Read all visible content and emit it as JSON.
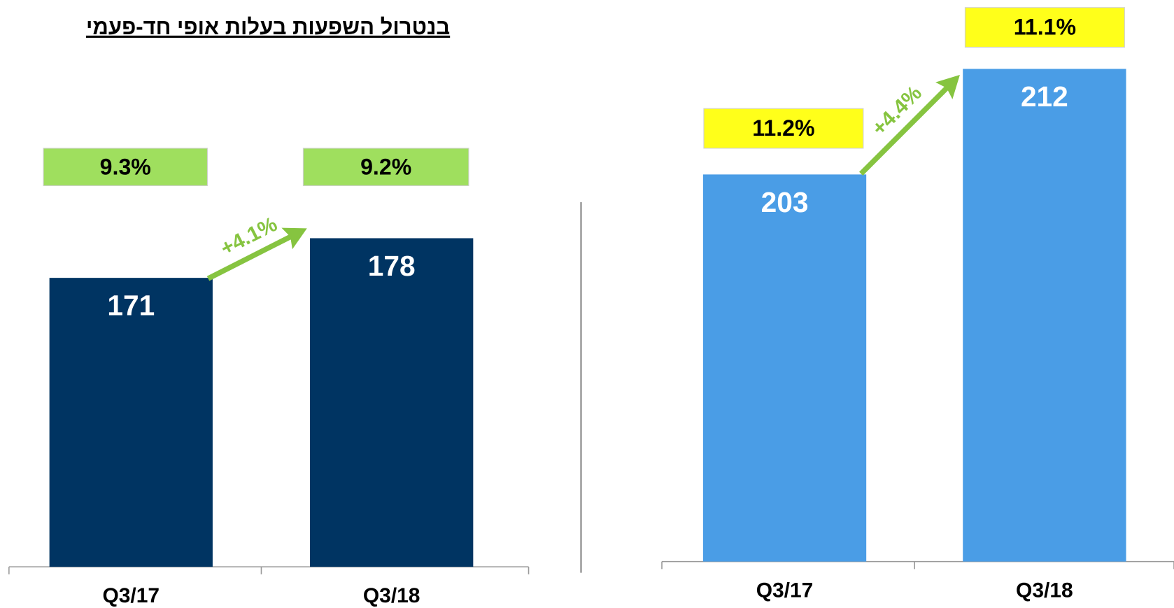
{
  "chart_data": [
    {
      "type": "bar",
      "title": "בנטרול השפעות בעלות אופי חד-פעמי",
      "categories": [
        "Q3/17",
        "Q3/18"
      ],
      "values": [
        171,
        178
      ],
      "color": "#003462",
      "ylim": [
        120,
        180
      ],
      "margin": {
        "values": [
          9.3,
          9.2
        ],
        "value_labels": [
          "9.3%",
          "9.2%"
        ],
        "color": "#9fdf5e"
      },
      "change": {
        "label": "+4.1%",
        "color": "#86c440"
      }
    },
    {
      "type": "bar",
      "categories": [
        "Q3/17",
        "Q3/18"
      ],
      "values": [
        203,
        212
      ],
      "color": "#4a9de6",
      "ylim": [
        170,
        215
      ],
      "margin": {
        "values": [
          11.2,
          11.1
        ],
        "value_labels": [
          "11.2%",
          "11.1%"
        ],
        "color": "#ffff1a"
      },
      "change": {
        "label": "+4.4%",
        "color": "#86c440"
      }
    }
  ]
}
